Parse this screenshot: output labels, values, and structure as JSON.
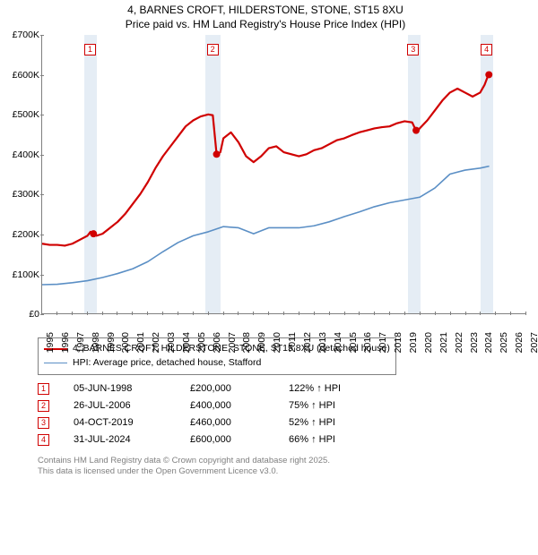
{
  "title": {
    "line1": "4, BARNES CROFT, HILDERSTONE, STONE, ST15 8XU",
    "line2": "Price paid vs. HM Land Registry's House Price Index (HPI)"
  },
  "chart": {
    "type": "line",
    "x_axis": {
      "min": 1995,
      "max": 2027,
      "tick_step": 1,
      "label_fontsize": 10.5
    },
    "y_axis": {
      "min": 0,
      "max": 700000,
      "tick_step": 100000,
      "labels": [
        "£0",
        "£100K",
        "£200K",
        "£300K",
        "£400K",
        "£500K",
        "£600K",
        "£700K"
      ],
      "label_fontsize": 10.5
    },
    "plot_background": "#ffffff",
    "pale_band_color": "#e5edf5",
    "pale_bands": [
      [
        1997.8,
        1998.6
      ],
      [
        2005.8,
        2006.8
      ],
      [
        2019.2,
        2020.0
      ],
      [
        2024.0,
        2024.8
      ]
    ],
    "series": [
      {
        "name": "property",
        "color": "#d00000",
        "width": 2.2,
        "points": [
          [
            1995.0,
            175000
          ],
          [
            1995.5,
            172000
          ],
          [
            1996.0,
            172000
          ],
          [
            1996.5,
            170000
          ],
          [
            1997.0,
            175000
          ],
          [
            1997.5,
            185000
          ],
          [
            1998.0,
            195000
          ],
          [
            1998.2,
            205000
          ],
          [
            1998.4,
            200000
          ],
          [
            1998.6,
            195000
          ],
          [
            1999.0,
            200000
          ],
          [
            1999.5,
            215000
          ],
          [
            2000.0,
            230000
          ],
          [
            2000.5,
            250000
          ],
          [
            2001.0,
            275000
          ],
          [
            2001.5,
            300000
          ],
          [
            2002.0,
            330000
          ],
          [
            2002.5,
            365000
          ],
          [
            2003.0,
            395000
          ],
          [
            2003.5,
            420000
          ],
          [
            2004.0,
            445000
          ],
          [
            2004.5,
            470000
          ],
          [
            2005.0,
            485000
          ],
          [
            2005.5,
            495000
          ],
          [
            2006.0,
            500000
          ],
          [
            2006.3,
            498000
          ],
          [
            2006.55,
            400000
          ],
          [
            2006.8,
            405000
          ],
          [
            2007.0,
            440000
          ],
          [
            2007.5,
            455000
          ],
          [
            2008.0,
            430000
          ],
          [
            2008.5,
            395000
          ],
          [
            2009.0,
            380000
          ],
          [
            2009.5,
            395000
          ],
          [
            2010.0,
            415000
          ],
          [
            2010.5,
            420000
          ],
          [
            2011.0,
            405000
          ],
          [
            2011.5,
            400000
          ],
          [
            2012.0,
            395000
          ],
          [
            2012.5,
            400000
          ],
          [
            2013.0,
            410000
          ],
          [
            2013.5,
            415000
          ],
          [
            2014.0,
            425000
          ],
          [
            2014.5,
            435000
          ],
          [
            2015.0,
            440000
          ],
          [
            2015.5,
            448000
          ],
          [
            2016.0,
            455000
          ],
          [
            2016.5,
            460000
          ],
          [
            2017.0,
            465000
          ],
          [
            2017.5,
            468000
          ],
          [
            2018.0,
            470000
          ],
          [
            2018.5,
            478000
          ],
          [
            2019.0,
            483000
          ],
          [
            2019.5,
            480000
          ],
          [
            2019.75,
            460000
          ],
          [
            2019.76,
            455000
          ],
          [
            2020.0,
            465000
          ],
          [
            2020.5,
            485000
          ],
          [
            2021.0,
            510000
          ],
          [
            2021.5,
            535000
          ],
          [
            2022.0,
            555000
          ],
          [
            2022.5,
            565000
          ],
          [
            2023.0,
            555000
          ],
          [
            2023.5,
            545000
          ],
          [
            2024.0,
            555000
          ],
          [
            2024.3,
            575000
          ],
          [
            2024.5,
            595000
          ],
          [
            2024.58,
            605000
          ]
        ],
        "dots": [
          [
            1998.4,
            200000
          ],
          [
            2006.55,
            400000
          ],
          [
            2019.76,
            460000
          ],
          [
            2024.58,
            600000
          ]
        ]
      },
      {
        "name": "hpi",
        "color": "#5b8fc5",
        "width": 1.6,
        "points": [
          [
            1995.0,
            72000
          ],
          [
            1996.0,
            73000
          ],
          [
            1997.0,
            77000
          ],
          [
            1998.0,
            82000
          ],
          [
            1999.0,
            90000
          ],
          [
            2000.0,
            100000
          ],
          [
            2001.0,
            112000
          ],
          [
            2002.0,
            130000
          ],
          [
            2003.0,
            155000
          ],
          [
            2004.0,
            178000
          ],
          [
            2005.0,
            195000
          ],
          [
            2006.0,
            205000
          ],
          [
            2007.0,
            218000
          ],
          [
            2008.0,
            215000
          ],
          [
            2009.0,
            200000
          ],
          [
            2010.0,
            215000
          ],
          [
            2011.0,
            215000
          ],
          [
            2012.0,
            215000
          ],
          [
            2013.0,
            220000
          ],
          [
            2014.0,
            230000
          ],
          [
            2015.0,
            243000
          ],
          [
            2016.0,
            255000
          ],
          [
            2017.0,
            268000
          ],
          [
            2018.0,
            278000
          ],
          [
            2019.0,
            285000
          ],
          [
            2020.0,
            292000
          ],
          [
            2021.0,
            315000
          ],
          [
            2022.0,
            350000
          ],
          [
            2023.0,
            360000
          ],
          [
            2024.0,
            365000
          ],
          [
            2024.6,
            370000
          ]
        ]
      }
    ],
    "markers": [
      {
        "n": "1",
        "x": 1998.2,
        "y": 665000
      },
      {
        "n": "2",
        "x": 2006.3,
        "y": 665000
      },
      {
        "n": "3",
        "x": 2019.55,
        "y": 665000
      },
      {
        "n": "4",
        "x": 2024.4,
        "y": 665000
      }
    ]
  },
  "legend": {
    "items": [
      {
        "label": "4, BARNES CROFT, HILDERSTONE, STONE, ST15 8XU (detached house)",
        "color": "#d00000",
        "width": 2.2
      },
      {
        "label": "HPI: Average price, detached house, Stafford",
        "color": "#5b8fc5",
        "width": 1.6
      }
    ]
  },
  "events": [
    {
      "n": "1",
      "date": "05-JUN-1998",
      "price": "£200,000",
      "hpi": "122% ↑ HPI"
    },
    {
      "n": "2",
      "date": "26-JUL-2006",
      "price": "£400,000",
      "hpi": "75% ↑ HPI"
    },
    {
      "n": "3",
      "date": "04-OCT-2019",
      "price": "£460,000",
      "hpi": "52% ↑ HPI"
    },
    {
      "n": "4",
      "date": "31-JUL-2024",
      "price": "£600,000",
      "hpi": "66% ↑ HPI"
    }
  ],
  "footer": {
    "line1": "Contains HM Land Registry data © Crown copyright and database right 2025.",
    "line2": "This data is licensed under the Open Government Licence v3.0."
  }
}
